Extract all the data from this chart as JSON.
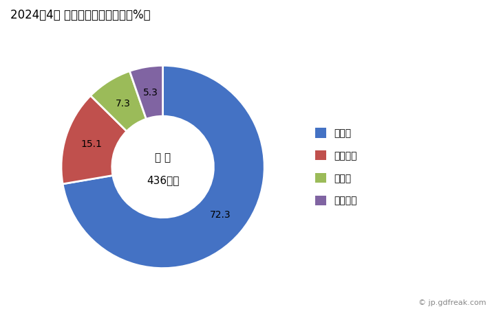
{
  "title": "2024年4月 輸出相手国のシェア（%）",
  "labels": [
    "ロシア",
    "エジプト",
    "チェコ",
    "ギリシャ"
  ],
  "values": [
    72.3,
    15.1,
    7.3,
    5.3
  ],
  "colors": [
    "#4472C4",
    "#C0504D",
    "#9BBB59",
    "#8064A2"
  ],
  "center_label_line1": "総 額",
  "center_label_line2": "436万円",
  "watermark": "© jp.gdfreak.com",
  "background_color": "#FFFFFF",
  "label_text_color_dark": [
    "72.3"
  ],
  "label_positions_r": 0.74
}
